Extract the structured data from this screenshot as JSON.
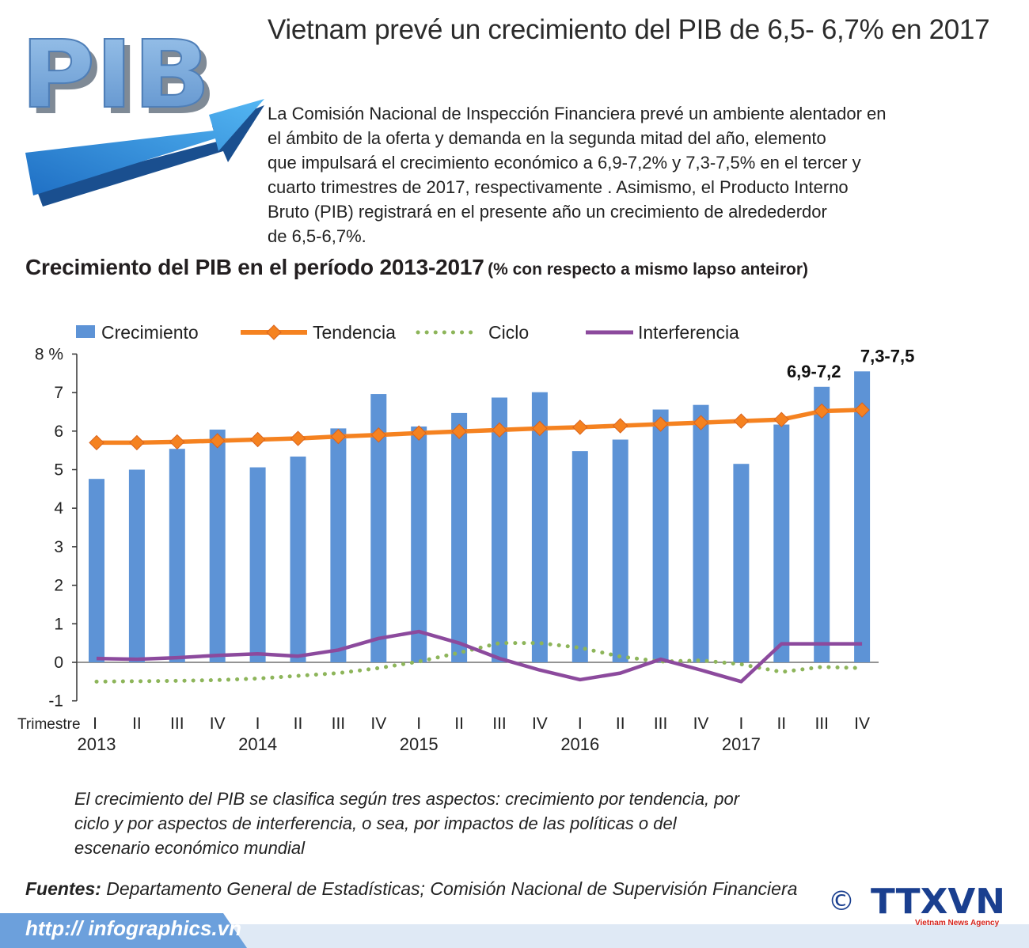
{
  "header": {
    "logo_text": "PIB",
    "headline": "Vietnam prevé  un crecimiento del PIB de 6,5- 6,7% en 2017",
    "intro_lines": [
      "La Comisión Nacional de Inspección Financiera prevé un ambiente alentador en",
      "el ámbito de la oferta y demanda en la segunda mitad del año, elemento",
      "que impulsará el  crecimiento económico a  6,9-7,2% y 7,3-7,5% en el tercer y",
      "cuarto trimestres de 2017, respectivamente . Asimismo, el Producto Interno",
      "Bruto (PIB) registrará en el presente año un crecimiento de alredederdor",
      "de 6,5-6,7%."
    ]
  },
  "chart_data": {
    "type": "bar",
    "title": "Crecimiento del PIB en el período 2013-2017",
    "subtitle": "(% con respecto a mismo lapso anteiror)",
    "x_axis_prefix": "Trimestre",
    "categories": [
      "I",
      "II",
      "III",
      "IV",
      "I",
      "II",
      "III",
      "IV",
      "I",
      "II",
      "III",
      "IV",
      "I",
      "II",
      "III",
      "IV",
      "I",
      "II",
      "III",
      "IV"
    ],
    "year_labels": [
      {
        "label": "2013",
        "index": 0
      },
      {
        "label": "2014",
        "index": 4
      },
      {
        "label": "2015",
        "index": 8
      },
      {
        "label": "2016",
        "index": 12
      },
      {
        "label": "2017",
        "index": 16
      }
    ],
    "y_ticks": [
      "8 %",
      "7",
      "6",
      "5",
      "4",
      "3",
      "2",
      "1",
      "0",
      "-1"
    ],
    "ylim": [
      -1,
      8
    ],
    "grid": false,
    "legend_position": "top",
    "series": [
      {
        "name": "Crecimiento",
        "kind": "bar",
        "color": "#5d93d6",
        "values": [
          4.76,
          5.0,
          5.54,
          6.04,
          5.06,
          5.34,
          6.07,
          6.96,
          6.12,
          6.47,
          6.87,
          7.01,
          5.48,
          5.78,
          6.56,
          6.68,
          5.15,
          6.17,
          7.15,
          7.55
        ]
      },
      {
        "name": "Tendencia",
        "kind": "line-markers",
        "color": "#f58220",
        "values": [
          5.7,
          5.7,
          5.72,
          5.75,
          5.78,
          5.81,
          5.86,
          5.9,
          5.95,
          5.99,
          6.03,
          6.07,
          6.1,
          6.14,
          6.18,
          6.22,
          6.26,
          6.3,
          6.52,
          6.55
        ]
      },
      {
        "name": "Ciclo",
        "kind": "dotted-line",
        "color": "#8db55a",
        "values": [
          -0.5,
          -0.49,
          -0.48,
          -0.46,
          -0.42,
          -0.35,
          -0.28,
          -0.15,
          0.02,
          0.25,
          0.5,
          0.5,
          0.38,
          0.15,
          0.02,
          0.05,
          -0.05,
          -0.25,
          -0.12,
          -0.15
        ]
      },
      {
        "name": "Interferencia",
        "kind": "line",
        "color": "#8c4a9d",
        "values": [
          0.1,
          0.08,
          0.12,
          0.18,
          0.22,
          0.16,
          0.32,
          0.62,
          0.8,
          0.5,
          0.1,
          -0.2,
          -0.45,
          -0.28,
          0.08,
          -0.2,
          -0.5,
          0.48,
          0.48,
          0.48
        ]
      }
    ],
    "annotations": [
      {
        "text": "6,9-7,2",
        "index": 18
      },
      {
        "text": "7,3-7,5",
        "index": 19
      }
    ]
  },
  "note_lines": [
    "El crecimiento del PIB se clasifica según tres aspectos: crecimiento por tendencia, por",
    "ciclo y por aspectos de interferencia, o sea, por impactos de las políticas o del",
    "escenario económico mundial"
  ],
  "sources": {
    "label": "Fuentes:",
    "text": " Departamento General de Estadísticas; Comisión Nacional de Supervisión Financiera"
  },
  "footer": {
    "url": "http:// infographics.vn",
    "copyright_symbol": "©",
    "agency_logo": "TTXVN",
    "agency_caption": "Vietnam News Agency"
  },
  "colors": {
    "bar": "#5d93d6",
    "trend": "#f58220",
    "cycle": "#8db55a",
    "interference": "#8c4a9d",
    "agency_blue": "#1a3f8f",
    "agency_red": "#d7261e",
    "footer_blue": "#6ca0dc"
  }
}
